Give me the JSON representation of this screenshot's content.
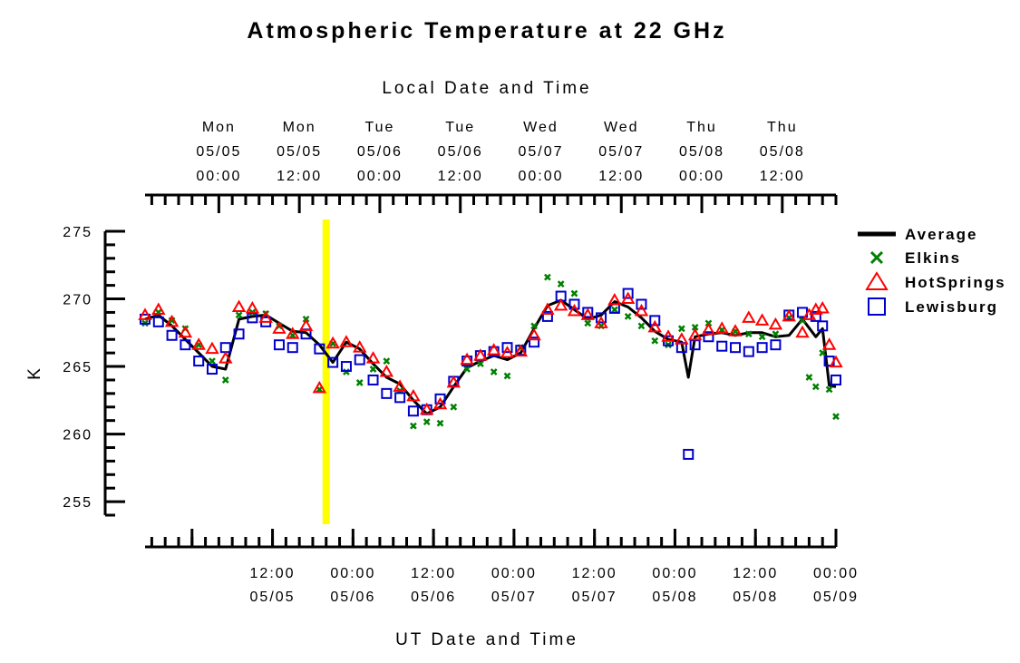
{
  "chart_data": {
    "type": "scatter",
    "title": "Atmospheric Temperature at 22 GHz",
    "top_axis_label": "Local Date and Time",
    "xlabel": "UT Date and Time",
    "ylabel": "K",
    "ylim": [
      254,
      275
    ],
    "yticks": [
      255,
      260,
      265,
      270,
      275
    ],
    "xlim": [
      "05/04 17:00",
      "05/09 00:00"
    ],
    "x_unit": "UT hour",
    "bottom_ticks": [
      {
        "time": "12:00",
        "date": "05/05"
      },
      {
        "time": "00:00",
        "date": "05/06"
      },
      {
        "time": "12:00",
        "date": "05/06"
      },
      {
        "time": "00:00",
        "date": "05/07"
      },
      {
        "time": "12:00",
        "date": "05/07"
      },
      {
        "time": "00:00",
        "date": "05/08"
      },
      {
        "time": "12:00",
        "date": "05/08"
      },
      {
        "time": "00:00",
        "date": "05/09"
      }
    ],
    "top_ticks": [
      {
        "day": "Mon",
        "date": "05/05",
        "time": "00:00"
      },
      {
        "day": "Mon",
        "date": "05/05",
        "time": "12:00"
      },
      {
        "day": "Tue",
        "date": "05/06",
        "time": "00:00"
      },
      {
        "day": "Tue",
        "date": "05/06",
        "time": "12:00"
      },
      {
        "day": "Wed",
        "date": "05/07",
        "time": "00:00"
      },
      {
        "day": "Wed",
        "date": "05/07",
        "time": "12:00"
      },
      {
        "day": "Thu",
        "date": "05/08",
        "time": "00:00"
      },
      {
        "day": "Thu",
        "date": "05/08",
        "time": "12:00"
      }
    ],
    "highlight": {
      "label": "",
      "x": "05/05 20:00",
      "color": "#ffff00"
    },
    "legend": {
      "position": "right"
    },
    "series": [
      {
        "name": "Average",
        "marker": "line",
        "color": "#000000",
        "x": [
          "05/04 17:00",
          "05/04 19:00",
          "05/04 21:00",
          "05/04 23:00",
          "05/05 01:00",
          "05/05 03:00",
          "05/05 05:00",
          "05/05 07:00",
          "05/05 09:00",
          "05/05 11:00",
          "05/05 13:00",
          "05/05 15:00",
          "05/05 17:00",
          "05/05 19:00",
          "05/05 21:00",
          "05/05 23:00",
          "05/06 01:00",
          "05/06 03:00",
          "05/06 05:00",
          "05/06 07:00",
          "05/06 09:00",
          "05/06 11:00",
          "05/06 13:00",
          "05/06 15:00",
          "05/06 17:00",
          "05/06 19:00",
          "05/06 21:00",
          "05/06 23:00",
          "05/07 01:00",
          "05/07 03:00",
          "05/07 05:00",
          "05/07 07:00",
          "05/07 09:00",
          "05/07 11:00",
          "05/07 13:00",
          "05/07 15:00",
          "05/07 17:00",
          "05/07 19:00",
          "05/07 21:00",
          "05/07 23:00",
          "05/08 01:00",
          "05/08 02:00",
          "05/08 03:00",
          "05/08 05:00",
          "05/08 07:00",
          "05/08 09:00",
          "05/08 11:00",
          "05/08 13:00",
          "05/08 15:00",
          "05/08 17:00",
          "05/08 19:00",
          "05/08 21:00",
          "05/08 22:00",
          "05/08 23:00",
          "05/09 00:00"
        ],
        "y": [
          268.5,
          268.8,
          268.0,
          267.0,
          266.0,
          265.0,
          264.8,
          268.5,
          268.7,
          268.8,
          268.2,
          267.6,
          267.5,
          266.6,
          265.3,
          266.8,
          266.3,
          265.2,
          264.2,
          263.7,
          262.5,
          261.5,
          262.0,
          263.5,
          264.9,
          265.4,
          265.8,
          265.5,
          266.0,
          267.8,
          269.5,
          269.9,
          269.2,
          268.5,
          268.8,
          269.8,
          269.4,
          268.6,
          267.6,
          267.0,
          266.8,
          264.2,
          267.2,
          267.4,
          267.5,
          267.3,
          267.5,
          267.5,
          267.2,
          267.3,
          268.5,
          267.2,
          267.8,
          263.6,
          263.5
        ]
      },
      {
        "name": "Elkins",
        "marker": "x",
        "color": "#008000",
        "x": [
          "05/04 17:00",
          "05/04 19:00",
          "05/04 21:00",
          "05/04 23:00",
          "05/05 01:00",
          "05/05 03:00",
          "05/05 05:00",
          "05/05 07:00",
          "05/05 09:00",
          "05/05 11:00",
          "05/05 13:00",
          "05/05 15:00",
          "05/05 17:00",
          "05/05 19:00",
          "05/05 21:00",
          "05/05 23:00",
          "05/06 01:00",
          "05/06 03:00",
          "05/06 05:00",
          "05/06 07:00",
          "05/06 09:00",
          "05/06 11:00",
          "05/06 13:00",
          "05/06 15:00",
          "05/06 17:00",
          "05/06 19:00",
          "05/06 21:00",
          "05/06 23:00",
          "05/07 01:00",
          "05/07 03:00",
          "05/07 05:00",
          "05/07 07:00",
          "05/07 09:00",
          "05/07 11:00",
          "05/07 13:00",
          "05/07 15:00",
          "05/07 17:00",
          "05/07 19:00",
          "05/07 21:00",
          "05/07 23:00",
          "05/08 01:00",
          "05/08 03:00",
          "05/08 05:00",
          "05/08 07:00",
          "05/08 09:00",
          "05/08 11:00",
          "05/08 13:00",
          "05/08 15:00",
          "05/08 17:00",
          "05/08 19:00",
          "05/08 20:00",
          "05/08 21:00",
          "05/08 22:00",
          "05/08 23:00",
          "05/09 00:00"
        ],
        "y": [
          268.2,
          269.0,
          268.4,
          267.8,
          266.6,
          265.4,
          264.0,
          268.8,
          269.0,
          268.9,
          268.0,
          267.3,
          268.5,
          263.3,
          266.7,
          264.6,
          263.8,
          264.8,
          265.4,
          263.2,
          260.6,
          260.9,
          260.8,
          262.0,
          264.8,
          265.2,
          264.6,
          264.3,
          266.4,
          268.0,
          271.6,
          271.1,
          270.4,
          268.2,
          268.0,
          269.2,
          268.7,
          268.0,
          266.9,
          266.6,
          267.8,
          267.9,
          268.2,
          267.7,
          267.6,
          267.4,
          267.2,
          267.4,
          268.6,
          268.4,
          264.2,
          263.5,
          266.0,
          263.3,
          261.3
        ]
      },
      {
        "name": "HotSprings",
        "marker": "triangle",
        "color": "#ff0000",
        "x": [
          "05/04 17:00",
          "05/04 19:00",
          "05/04 21:00",
          "05/04 23:00",
          "05/05 01:00",
          "05/05 03:00",
          "05/05 05:00",
          "05/05 07:00",
          "05/05 09:00",
          "05/05 11:00",
          "05/05 13:00",
          "05/05 15:00",
          "05/05 17:00",
          "05/05 19:00",
          "05/05 21:00",
          "05/05 23:00",
          "05/06 01:00",
          "05/06 03:00",
          "05/06 05:00",
          "05/06 07:00",
          "05/06 09:00",
          "05/06 11:00",
          "05/06 13:00",
          "05/06 15:00",
          "05/06 17:00",
          "05/06 19:00",
          "05/06 21:00",
          "05/06 23:00",
          "05/07 01:00",
          "05/07 03:00",
          "05/07 05:00",
          "05/07 07:00",
          "05/07 09:00",
          "05/07 11:00",
          "05/07 13:00",
          "05/07 15:00",
          "05/07 17:00",
          "05/07 19:00",
          "05/07 21:00",
          "05/07 23:00",
          "05/08 01:00",
          "05/08 03:00",
          "05/08 05:00",
          "05/08 07:00",
          "05/08 09:00",
          "05/08 11:00",
          "05/08 13:00",
          "05/08 15:00",
          "05/08 17:00",
          "05/08 19:00",
          "05/08 20:00",
          "05/08 21:00",
          "05/08 22:00",
          "05/08 23:00",
          "05/09 00:00"
        ],
        "y": [
          268.8,
          269.2,
          268.3,
          267.5,
          266.6,
          266.3,
          265.6,
          269.4,
          269.3,
          268.6,
          267.8,
          267.4,
          268.0,
          263.4,
          266.7,
          266.8,
          266.4,
          265.6,
          264.6,
          263.5,
          262.8,
          261.8,
          262.2,
          263.8,
          265.5,
          265.8,
          266.2,
          266.0,
          266.1,
          267.3,
          269.2,
          269.5,
          269.1,
          268.8,
          268.2,
          269.9,
          270.0,
          269.1,
          267.9,
          267.2,
          267.0,
          267.3,
          267.7,
          267.8,
          267.6,
          268.6,
          268.4,
          268.1,
          268.7,
          267.5,
          268.8,
          269.2,
          269.3,
          266.6,
          265.3
        ]
      },
      {
        "name": "Lewisburg",
        "marker": "square",
        "color": "#0000cc",
        "x": [
          "05/04 17:00",
          "05/04 19:00",
          "05/04 21:00",
          "05/04 23:00",
          "05/05 01:00",
          "05/05 03:00",
          "05/05 05:00",
          "05/05 07:00",
          "05/05 09:00",
          "05/05 11:00",
          "05/05 13:00",
          "05/05 15:00",
          "05/05 17:00",
          "05/05 19:00",
          "05/05 21:00",
          "05/05 23:00",
          "05/06 01:00",
          "05/06 03:00",
          "05/06 05:00",
          "05/06 07:00",
          "05/06 09:00",
          "05/06 11:00",
          "05/06 13:00",
          "05/06 15:00",
          "05/06 17:00",
          "05/06 19:00",
          "05/06 21:00",
          "05/06 23:00",
          "05/07 01:00",
          "05/07 03:00",
          "05/07 05:00",
          "05/07 07:00",
          "05/07 09:00",
          "05/07 11:00",
          "05/07 13:00",
          "05/07 15:00",
          "05/07 17:00",
          "05/07 19:00",
          "05/07 21:00",
          "05/07 23:00",
          "05/08 01:00",
          "05/08 02:00",
          "05/08 03:00",
          "05/08 05:00",
          "05/08 07:00",
          "05/08 09:00",
          "05/08 11:00",
          "05/08 13:00",
          "05/08 15:00",
          "05/08 17:00",
          "05/08 19:00",
          "05/08 21:00",
          "05/08 22:00",
          "05/08 23:00",
          "05/09 00:00"
        ],
        "y": [
          268.5,
          268.3,
          267.3,
          266.6,
          265.4,
          264.8,
          266.4,
          267.4,
          268.6,
          268.3,
          266.6,
          266.4,
          267.4,
          266.3,
          265.3,
          265.0,
          265.5,
          264.0,
          263.0,
          262.7,
          261.7,
          261.8,
          262.6,
          263.9,
          265.4,
          265.8,
          266.1,
          266.4,
          266.2,
          266.8,
          268.7,
          270.2,
          269.6,
          269.0,
          268.6,
          269.3,
          270.4,
          269.6,
          268.4,
          266.9,
          266.4,
          258.5,
          266.6,
          267.2,
          266.5,
          266.4,
          266.1,
          266.4,
          266.6,
          268.8,
          269.0,
          268.7,
          268.0,
          265.4,
          264.0
        ]
      }
    ]
  },
  "legend_items": [
    {
      "label": "Average"
    },
    {
      "label": "Elkins"
    },
    {
      "label": "HotSprings"
    },
    {
      "label": "Lewisburg"
    }
  ]
}
